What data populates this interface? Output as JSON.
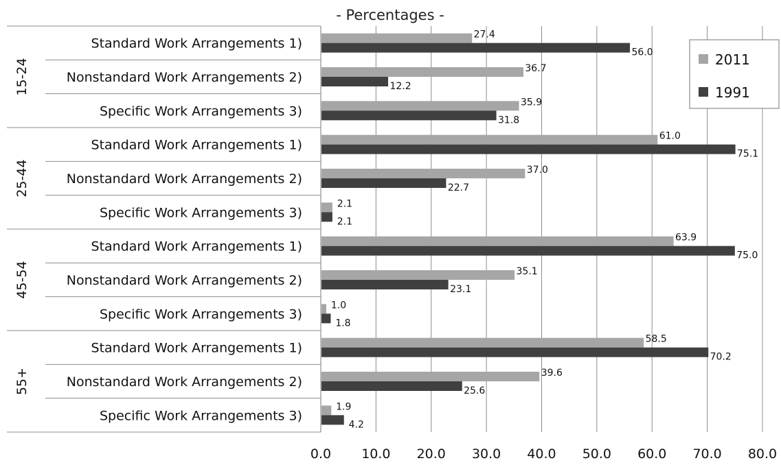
{
  "chart_data": {
    "type": "bar",
    "orientation": "horizontal",
    "title": "- Percentages -",
    "xlim": [
      0,
      80
    ],
    "x_ticks": [
      "0.0",
      "10.0",
      "20.0",
      "30.0",
      "40.0",
      "50.0",
      "60.0",
      "70.0",
      "80.0"
    ],
    "grid": "vertical",
    "legend_position": "top-right",
    "colors": {
      "2011": "#a6a6a6",
      "1991": "#404040"
    },
    "groups": [
      {
        "label": "15-24",
        "categories": [
          {
            "label": "Standard Work Arrangements 1)",
            "v2011": 27.4,
            "v1991": 56.0,
            "l2011": "27.4",
            "l1991": "56.0"
          },
          {
            "label": "Nonstandard Work Arrangements 2)",
            "v2011": 36.7,
            "v1991": 12.2,
            "l2011": "36.7",
            "l1991": "12.2"
          },
          {
            "label": "Specific Work Arrangements 3)",
            "v2011": 35.9,
            "v1991": 31.8,
            "l2011": "35.9",
            "l1991": "31.8"
          }
        ]
      },
      {
        "label": "25-44",
        "categories": [
          {
            "label": "Standard Work Arrangements 1)",
            "v2011": 61.0,
            "v1991": 75.1,
            "l2011": "61.0",
            "l1991": "75.1"
          },
          {
            "label": "Nonstandard Work Arrangements 2)",
            "v2011": 37.0,
            "v1991": 22.7,
            "l2011": "37.0",
            "l1991": "22.7"
          },
          {
            "label": "Specific Work Arrangements 3)",
            "v2011": 2.1,
            "v1991": 2.1,
            "l2011": "2.1",
            "l1991": "2.1"
          }
        ]
      },
      {
        "label": "45-54",
        "categories": [
          {
            "label": "Standard Work Arrangements 1)",
            "v2011": 63.9,
            "v1991": 75.0,
            "l2011": "63.9",
            "l1991": "75.0"
          },
          {
            "label": "Nonstandard Work Arrangements 2)",
            "v2011": 35.1,
            "v1991": 23.1,
            "l2011": "35.1",
            "l1991": "23.1"
          },
          {
            "label": "Specific Work Arrangements 3)",
            "v2011": 1.0,
            "v1991": 1.8,
            "l2011": "1.0",
            "l1991": "1.8"
          }
        ]
      },
      {
        "label": "55+",
        "categories": [
          {
            "label": "Standard Work Arrangements 1)",
            "v2011": 58.5,
            "v1991": 70.2,
            "l2011": "58.5",
            "l1991": "70.2"
          },
          {
            "label": "Nonstandard Work Arrangements 2)",
            "v2011": 39.6,
            "v1991": 25.6,
            "l2011": "39.6",
            "l1991": "25.6"
          },
          {
            "label": "Specific Work Arrangements 3)",
            "v2011": 1.9,
            "v1991": 4.2,
            "l2011": "1.9",
            "l1991": "4.2"
          }
        ]
      }
    ],
    "series": [
      {
        "name": "2011",
        "key": "v2011"
      },
      {
        "name": "1991",
        "key": "v1991"
      }
    ]
  }
}
